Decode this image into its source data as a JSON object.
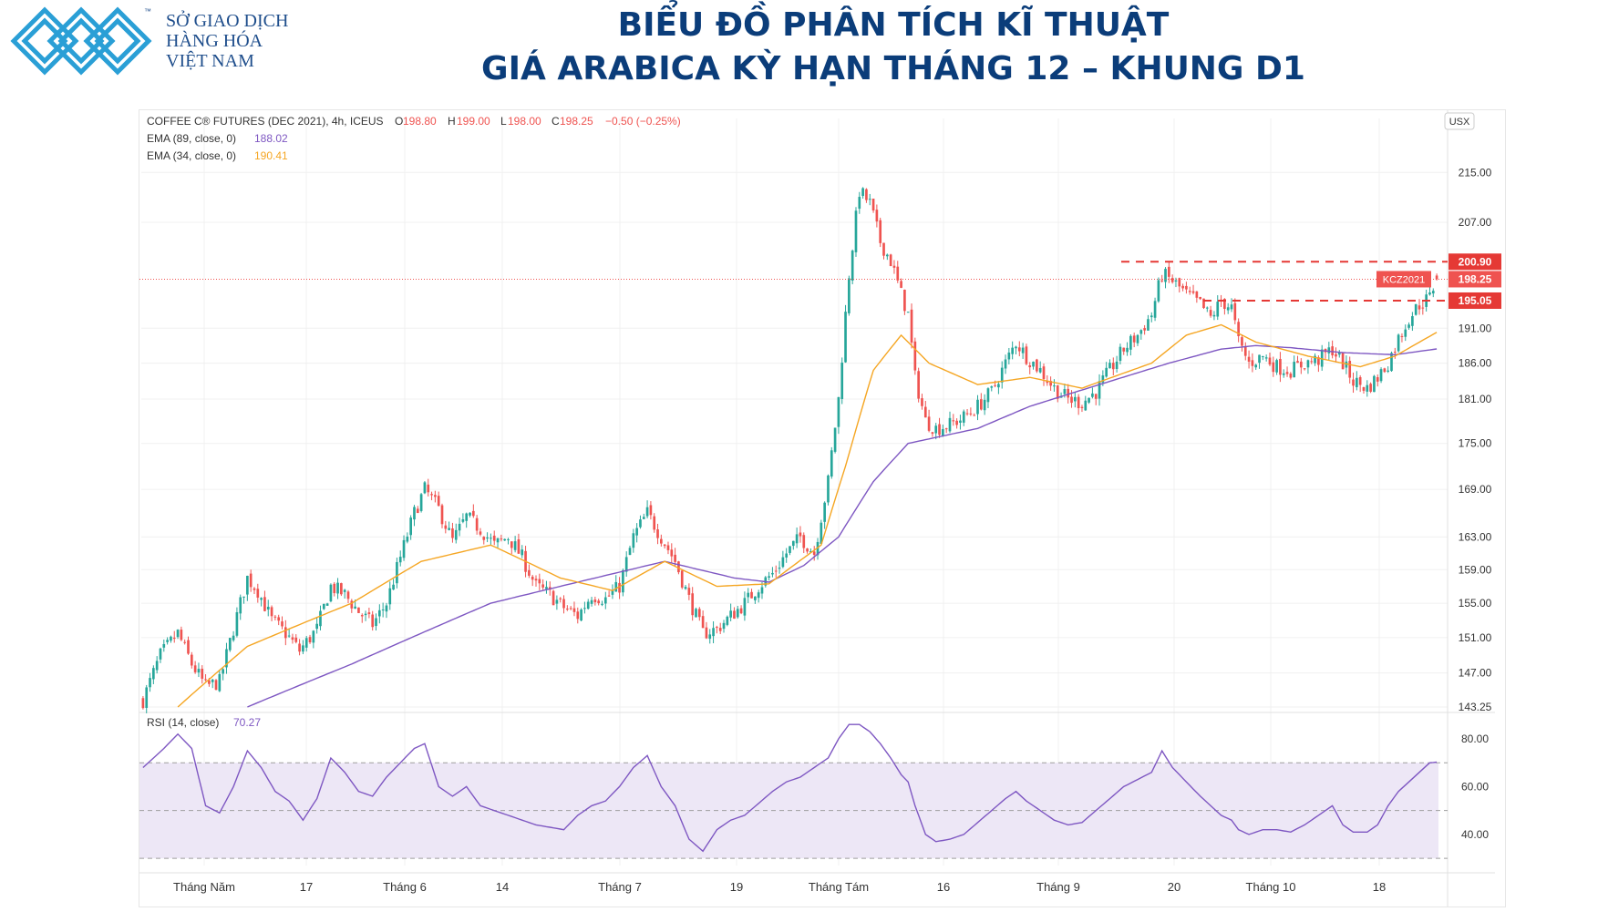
{
  "header": {
    "logo_icon": "diamond-lattice-logo",
    "logo_tm": "™",
    "logo_lines": [
      "SỞ GIAO DỊCH",
      "HÀNG HÓA",
      "VIỆT NAM"
    ],
    "title_line1": "BIỂU ĐỒ PHÂN TÍCH KĨ THUẬT",
    "title_line2": "GIÁ ARABICA KỲ HẠN THÁNG 12 – KHUNG D1"
  },
  "legend": {
    "symbol": "COFFEE C® FUTURES (DEC 2021), 4h, ICEUS",
    "o_label": "O",
    "o": "198.80",
    "h_label": "H",
    "h": "199.00",
    "l_label": "L",
    "l": "198.00",
    "c_label": "C",
    "c": "198.25",
    "change": "−0.50 (−0.25%)",
    "ema89_label": "EMA (89, close, 0)",
    "ema89_value": "188.02",
    "ema34_label": "EMA (34, close, 0)",
    "ema34_value": "190.41",
    "rsi_label": "RSI (14, close)",
    "rsi_value": "70.27",
    "currency": "USX"
  },
  "colors": {
    "up": "#26a69a",
    "down": "#ef5350",
    "ema89": "#7e57c2",
    "ema34": "#f5a623",
    "rsi": "#7e57c2",
    "rsi_band": "#ede7f6",
    "level": "#e53935",
    "price_tag": "#ef5350"
  },
  "chart_data": [
    {
      "type": "candlestick",
      "title": "COFFEE C® FUTURES (DEC 2021), 4h, ICEUS",
      "ylim": [
        143.25,
        224.0
      ],
      "y_scale": "log",
      "y_ticks": [
        "215.00",
        "207.00",
        "191.00",
        "186.00",
        "181.00",
        "175.00",
        "169.00",
        "163.00",
        "159.00",
        "155.00",
        "151.00",
        "147.00",
        "143.25"
      ],
      "y_tick_values": [
        215,
        207,
        191,
        186,
        181,
        175,
        169,
        163,
        159,
        155,
        151,
        147,
        143.25
      ],
      "x_ticks": [
        "Tháng Năm",
        "17",
        "Tháng 6",
        "14",
        "Tháng 7",
        "19",
        "Tháng Tám",
        "16",
        "Tháng 9",
        "20",
        "Tháng 10",
        "18"
      ],
      "price_anchors": [
        [
          0,
          144
        ],
        [
          5,
          149
        ],
        [
          10,
          151.5
        ],
        [
          14,
          148
        ],
        [
          18,
          145.5
        ],
        [
          22,
          146
        ],
        [
          26,
          152
        ],
        [
          30,
          158
        ],
        [
          33,
          156.5
        ],
        [
          37,
          153
        ],
        [
          41,
          151.5
        ],
        [
          45,
          149.5
        ],
        [
          50,
          152
        ],
        [
          54,
          157
        ],
        [
          58,
          156
        ],
        [
          62,
          154
        ],
        [
          66,
          152.5
        ],
        [
          70,
          155
        ],
        [
          74,
          160.5
        ],
        [
          78,
          166
        ],
        [
          81,
          169
        ],
        [
          85,
          166.5
        ],
        [
          89,
          162.5
        ],
        [
          93,
          165.5
        ],
        [
          97,
          164
        ],
        [
          101,
          162
        ],
        [
          105,
          163
        ],
        [
          109,
          160.5
        ],
        [
          113,
          157
        ],
        [
          117,
          156
        ],
        [
          121,
          154.5
        ],
        [
          125,
          153.5
        ],
        [
          129,
          156
        ],
        [
          133,
          155.5
        ],
        [
          137,
          157
        ],
        [
          141,
          163
        ],
        [
          145,
          166
        ],
        [
          149,
          163
        ],
        [
          153,
          160
        ],
        [
          157,
          155.5
        ],
        [
          161,
          151.5
        ],
        [
          165,
          152
        ],
        [
          169,
          153.5
        ],
        [
          173,
          155
        ],
        [
          177,
          157
        ],
        [
          181,
          158.5
        ],
        [
          185,
          161
        ],
        [
          189,
          163
        ],
        [
          193,
          161
        ],
        [
          197,
          170
        ],
        [
          200,
          181
        ],
        [
          203,
          199
        ],
        [
          206,
          212
        ],
        [
          209,
          210
        ],
        [
          212,
          204
        ],
        [
          215,
          201
        ],
        [
          218,
          196
        ],
        [
          220,
          193
        ],
        [
          222,
          184
        ],
        [
          225,
          178
        ],
        [
          228,
          177
        ],
        [
          232,
          177.5
        ],
        [
          236,
          178.5
        ],
        [
          240,
          180
        ],
        [
          244,
          182
        ],
        [
          248,
          186
        ],
        [
          251,
          189
        ],
        [
          254,
          187
        ],
        [
          258,
          185
        ],
        [
          262,
          182.5
        ],
        [
          266,
          181
        ],
        [
          270,
          180.5
        ],
        [
          274,
          182
        ],
        [
          278,
          185
        ],
        [
          282,
          188
        ],
        [
          286,
          190
        ],
        [
          290,
          193
        ],
        [
          293,
          199
        ],
        [
          296,
          198
        ],
        [
          300,
          196
        ],
        [
          304,
          194.5
        ],
        [
          307,
          192.5
        ],
        [
          310,
          195
        ],
        [
          313,
          194
        ],
        [
          315,
          189
        ],
        [
          318,
          186
        ],
        [
          322,
          187
        ],
        [
          326,
          185.5
        ],
        [
          330,
          185
        ],
        [
          334,
          186
        ],
        [
          338,
          186.5
        ],
        [
          342,
          188
        ],
        [
          345,
          186
        ],
        [
          348,
          183.5
        ],
        [
          352,
          182.5
        ],
        [
          355,
          184
        ],
        [
          358,
          186
        ],
        [
          361,
          189.5
        ],
        [
          364,
          192.5
        ],
        [
          367,
          194.5
        ],
        [
          370,
          195.5
        ],
        [
          372,
          198.5
        ]
      ],
      "ema89_anchors": [
        [
          30,
          143.25
        ],
        [
          60,
          148
        ],
        [
          100,
          155
        ],
        [
          130,
          158
        ],
        [
          150,
          160
        ],
        [
          170,
          158
        ],
        [
          180,
          157.5
        ],
        [
          190,
          159.5
        ],
        [
          200,
          163
        ],
        [
          210,
          170
        ],
        [
          220,
          175
        ],
        [
          225,
          175.5
        ],
        [
          240,
          177
        ],
        [
          255,
          180
        ],
        [
          275,
          183
        ],
        [
          295,
          186
        ],
        [
          310,
          188
        ],
        [
          320,
          188.5
        ],
        [
          330,
          188.2
        ],
        [
          345,
          187.5
        ],
        [
          360,
          187.2
        ],
        [
          372,
          188.02
        ]
      ],
      "ema34_anchors": [
        [
          10,
          143.25
        ],
        [
          30,
          150
        ],
        [
          60,
          155
        ],
        [
          80,
          160
        ],
        [
          100,
          162
        ],
        [
          120,
          158
        ],
        [
          135,
          156.5
        ],
        [
          150,
          160
        ],
        [
          165,
          157
        ],
        [
          180,
          157.3
        ],
        [
          195,
          162
        ],
        [
          202,
          172
        ],
        [
          210,
          185
        ],
        [
          218,
          190
        ],
        [
          226,
          186
        ],
        [
          240,
          183
        ],
        [
          255,
          184
        ],
        [
          270,
          182.5
        ],
        [
          290,
          186
        ],
        [
          300,
          190
        ],
        [
          310,
          191.5
        ],
        [
          320,
          189
        ],
        [
          335,
          187
        ],
        [
          350,
          185.5
        ],
        [
          360,
          187
        ],
        [
          372,
          190.41
        ]
      ],
      "levels": [
        {
          "value": 200.9,
          "label": "200.90"
        },
        {
          "value": 195.05,
          "label": "195.05"
        }
      ],
      "last_price": {
        "value": 198.25,
        "label": "198.25",
        "symbol": "KCZ2021"
      },
      "series": [
        {
          "name": "EMA (89, close, 0)",
          "last": 188.02
        },
        {
          "name": "EMA (34, close, 0)",
          "last": 190.41
        }
      ]
    },
    {
      "type": "line",
      "title": "RSI (14, close)",
      "ylim": [
        27,
        88
      ],
      "y_ticks": [
        "80.00",
        "60.00",
        "40.00"
      ],
      "y_tick_values": [
        80,
        60,
        40
      ],
      "band": [
        30,
        70
      ],
      "midline": 50,
      "last": 70.27,
      "rsi_anchors": [
        [
          0,
          68
        ],
        [
          6,
          76
        ],
        [
          10,
          82
        ],
        [
          14,
          76
        ],
        [
          18,
          52
        ],
        [
          22,
          49
        ],
        [
          26,
          60
        ],
        [
          30,
          75
        ],
        [
          34,
          68
        ],
        [
          38,
          58
        ],
        [
          42,
          54
        ],
        [
          46,
          46
        ],
        [
          50,
          55
        ],
        [
          54,
          72
        ],
        [
          58,
          66
        ],
        [
          62,
          58
        ],
        [
          66,
          56
        ],
        [
          70,
          64
        ],
        [
          74,
          70
        ],
        [
          78,
          76
        ],
        [
          81,
          78
        ],
        [
          85,
          60
        ],
        [
          89,
          56
        ],
        [
          93,
          60
        ],
        [
          97,
          52
        ],
        [
          101,
          50
        ],
        [
          105,
          48
        ],
        [
          109,
          46
        ],
        [
          113,
          44
        ],
        [
          117,
          43
        ],
        [
          121,
          42
        ],
        [
          125,
          48
        ],
        [
          129,
          52
        ],
        [
          133,
          54
        ],
        [
          137,
          60
        ],
        [
          141,
          68
        ],
        [
          145,
          73
        ],
        [
          149,
          60
        ],
        [
          153,
          52
        ],
        [
          157,
          38
        ],
        [
          161,
          33
        ],
        [
          165,
          42
        ],
        [
          169,
          46
        ],
        [
          173,
          48
        ],
        [
          177,
          53
        ],
        [
          181,
          58
        ],
        [
          185,
          62
        ],
        [
          189,
          64
        ],
        [
          193,
          68
        ],
        [
          197,
          72
        ],
        [
          200,
          80
        ],
        [
          203,
          86
        ],
        [
          206,
          86
        ],
        [
          209,
          83
        ],
        [
          212,
          78
        ],
        [
          215,
          72
        ],
        [
          218,
          65
        ],
        [
          220,
          62
        ],
        [
          222,
          52
        ],
        [
          225,
          40
        ],
        [
          228,
          37
        ],
        [
          232,
          38
        ],
        [
          236,
          40
        ],
        [
          240,
          45
        ],
        [
          244,
          50
        ],
        [
          248,
          55
        ],
        [
          251,
          58
        ],
        [
          254,
          54
        ],
        [
          258,
          50
        ],
        [
          262,
          46
        ],
        [
          266,
          44
        ],
        [
          270,
          45
        ],
        [
          274,
          50
        ],
        [
          278,
          55
        ],
        [
          282,
          60
        ],
        [
          286,
          63
        ],
        [
          290,
          66
        ],
        [
          293,
          75
        ],
        [
          296,
          68
        ],
        [
          300,
          62
        ],
        [
          304,
          56
        ],
        [
          307,
          52
        ],
        [
          310,
          48
        ],
        [
          313,
          46
        ],
        [
          315,
          42
        ],
        [
          318,
          40
        ],
        [
          322,
          42
        ],
        [
          326,
          42
        ],
        [
          330,
          41
        ],
        [
          334,
          44
        ],
        [
          338,
          48
        ],
        [
          342,
          52
        ],
        [
          345,
          44
        ],
        [
          348,
          41
        ],
        [
          352,
          41
        ],
        [
          355,
          44
        ],
        [
          358,
          52
        ],
        [
          361,
          58
        ],
        [
          364,
          62
        ],
        [
          367,
          66
        ],
        [
          370,
          70
        ],
        [
          372,
          70.27
        ]
      ]
    }
  ]
}
